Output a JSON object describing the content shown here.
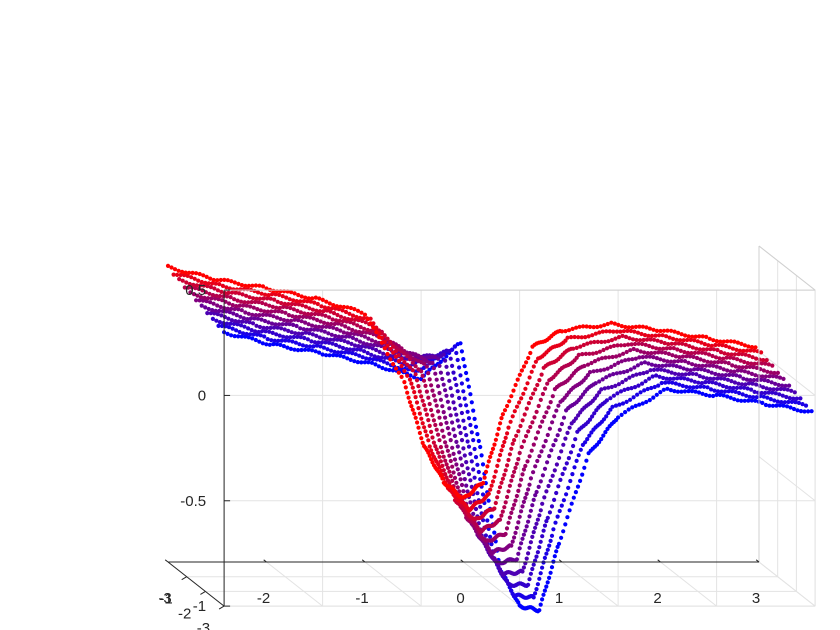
{
  "chart_data": {
    "type": "scatter",
    "projection": "3d",
    "title": "",
    "xlabel": "",
    "ylabel": "",
    "zlabel": "",
    "grid": true,
    "legend": "none",
    "xlim": [
      -3,
      3
    ],
    "ylim": [
      -3,
      0
    ],
    "zlim": [
      -1,
      0.5
    ],
    "x_ticks": [
      "-3",
      "-2",
      "-1",
      "0",
      "1",
      "2",
      "3"
    ],
    "y_ticks": [
      "-3",
      "-2",
      "-1"
    ],
    "z_ticks": [
      "-1",
      "-0.5",
      "0",
      "0.5"
    ],
    "color_gradient": {
      "front": "#ff0000",
      "back": "#0000ff"
    },
    "profile_x": [
      -3.0,
      -2.5,
      -2.0,
      -1.5,
      -1.0,
      -0.6,
      -0.4,
      -0.2,
      0.0,
      0.2,
      0.4,
      0.7,
      1.0,
      1.5,
      2.0,
      2.5,
      3.0
    ],
    "slice_y": [
      0,
      -0.3,
      -0.6,
      -0.9,
      -1.2,
      -1.5,
      -1.8,
      -2.1,
      -2.4,
      -2.7,
      -3.0
    ],
    "series": [
      {
        "y": 0,
        "z": [
          0.4,
          0.34,
          0.3,
          0.25,
          0.18,
          -0.15,
          -0.45,
          -0.62,
          -0.7,
          -0.62,
          -0.3,
          0.02,
          0.1,
          0.13,
          0.1,
          0.06,
          0.02
        ]
      },
      {
        "y": -0.3,
        "z": [
          0.39,
          0.33,
          0.29,
          0.24,
          0.17,
          -0.11,
          -0.43,
          -0.64,
          -0.73,
          -0.66,
          -0.34,
          -0.01,
          0.08,
          0.12,
          0.09,
          0.05,
          0.01
        ]
      },
      {
        "y": -0.6,
        "z": [
          0.38,
          0.32,
          0.28,
          0.23,
          0.16,
          -0.07,
          -0.41,
          -0.66,
          -0.76,
          -0.7,
          -0.38,
          -0.04,
          0.06,
          0.11,
          0.08,
          0.04,
          0.0
        ]
      },
      {
        "y": -0.9,
        "z": [
          0.37,
          0.31,
          0.27,
          0.22,
          0.15,
          -0.03,
          -0.39,
          -0.68,
          -0.79,
          -0.74,
          -0.42,
          -0.07,
          0.04,
          0.1,
          0.07,
          0.03,
          -0.01
        ]
      },
      {
        "y": -1.2,
        "z": [
          0.36,
          0.3,
          0.26,
          0.21,
          0.14,
          0.01,
          -0.37,
          -0.7,
          -0.82,
          -0.78,
          -0.46,
          -0.1,
          0.02,
          0.09,
          0.06,
          0.02,
          -0.02
        ]
      },
      {
        "y": -1.5,
        "z": [
          0.35,
          0.29,
          0.25,
          0.2,
          0.13,
          0.05,
          -0.35,
          -0.72,
          -0.85,
          -0.82,
          -0.5,
          -0.13,
          0.0,
          0.08,
          0.05,
          0.01,
          -0.03
        ]
      },
      {
        "y": -1.8,
        "z": [
          0.34,
          0.28,
          0.24,
          0.19,
          0.12,
          0.09,
          -0.33,
          -0.74,
          -0.88,
          -0.86,
          -0.54,
          -0.16,
          -0.02,
          0.07,
          0.04,
          0.0,
          -0.04
        ]
      },
      {
        "y": -2.1,
        "z": [
          0.33,
          0.27,
          0.23,
          0.18,
          0.11,
          0.13,
          -0.31,
          -0.76,
          -0.91,
          -0.9,
          -0.58,
          -0.19,
          -0.04,
          0.06,
          0.03,
          -0.01,
          -0.05
        ]
      },
      {
        "y": -2.4,
        "z": [
          0.32,
          0.26,
          0.22,
          0.17,
          0.1,
          0.17,
          -0.29,
          -0.78,
          -0.94,
          -0.94,
          -0.62,
          -0.22,
          -0.06,
          0.05,
          0.02,
          -0.02,
          -0.06
        ]
      },
      {
        "y": -2.7,
        "z": [
          0.31,
          0.25,
          0.21,
          0.16,
          0.09,
          0.21,
          -0.27,
          -0.8,
          -0.97,
          -0.98,
          -0.66,
          -0.25,
          -0.08,
          0.04,
          0.01,
          -0.03,
          -0.07
        ]
      },
      {
        "y": -3.0,
        "z": [
          0.3,
          0.24,
          0.2,
          0.15,
          0.08,
          0.25,
          -0.25,
          -0.82,
          -1.0,
          -1.02,
          -0.7,
          -0.28,
          -0.1,
          0.03,
          0.0,
          -0.04,
          -0.08
        ]
      }
    ]
  }
}
